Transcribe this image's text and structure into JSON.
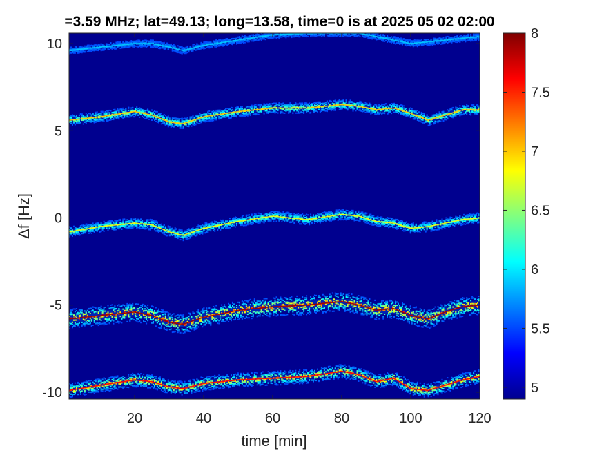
{
  "chart_data": {
    "type": "heatmap",
    "title": "=3.59 MHz;  lat=49.13; long=13.58, time=0 is at 2025 05 02 02:00",
    "xlabel": "time [min]",
    "ylabel": "Δf [Hz]",
    "xlim": [
      1,
      120
    ],
    "ylim": [
      -10.4,
      10.6
    ],
    "x_ticks": [
      20,
      40,
      60,
      80,
      100,
      120
    ],
    "x_tick_labels": [
      "20",
      "40",
      "60",
      "80",
      "100",
      "120"
    ],
    "y_ticks": [
      10,
      5,
      0,
      -5,
      -10
    ],
    "y_tick_labels": [
      "10",
      "5",
      "0",
      "-5",
      "-10"
    ],
    "colorbar": {
      "range": [
        4.9,
        8
      ],
      "ticks": [
        8,
        7.5,
        7,
        6.5,
        6,
        5.5,
        5
      ],
      "tick_labels": [
        "8",
        "7.5",
        "7",
        "6.5",
        "6",
        "5.5",
        "5"
      ],
      "colormap": "jet"
    },
    "grid": false,
    "background_color": "#00008f",
    "series": [
      {
        "x": [
          1,
          10,
          20,
          25,
          30,
          34,
          40,
          50,
          60,
          70,
          80,
          85,
          90,
          100,
          110,
          120
        ],
        "y": [
          9.6,
          9.8,
          10.0,
          10.0,
          9.8,
          9.6,
          9.9,
          10.2,
          10.5,
          10.6,
          10.6,
          10.6,
          10.4,
          10.0,
          10.2,
          10.4
        ],
        "peak": 5.9,
        "spread": 0.2
      },
      {
        "x": [
          1,
          10,
          20,
          25,
          30,
          34,
          40,
          50,
          60,
          70,
          80,
          85,
          90,
          95,
          100,
          105,
          110,
          115,
          120
        ],
        "y": [
          5.6,
          5.8,
          6.1,
          5.9,
          5.5,
          5.4,
          5.8,
          6.1,
          6.3,
          6.3,
          6.5,
          6.4,
          6.2,
          6.3,
          6.0,
          5.6,
          5.9,
          6.2,
          6.2
        ],
        "peak": 7.0,
        "spread": 0.3
      },
      {
        "x": [
          1,
          10,
          20,
          25,
          30,
          34,
          40,
          50,
          60,
          70,
          80,
          85,
          90,
          95,
          100,
          105,
          110,
          115,
          120
        ],
        "y": [
          -0.8,
          -0.5,
          -0.3,
          -0.4,
          -0.8,
          -1.0,
          -0.6,
          -0.2,
          0.1,
          -0.1,
          0.2,
          0.1,
          -0.2,
          -0.3,
          -0.6,
          -0.5,
          -0.3,
          -0.1,
          0.0
        ],
        "peak": 6.8,
        "spread": 0.3
      },
      {
        "x": [
          1,
          10,
          20,
          25,
          30,
          34,
          40,
          50,
          60,
          70,
          80,
          85,
          90,
          95,
          100,
          105,
          110,
          115,
          120
        ],
        "y": [
          -5.8,
          -5.6,
          -5.4,
          -5.6,
          -6.0,
          -6.1,
          -5.7,
          -5.3,
          -5.1,
          -5.0,
          -4.8,
          -5.0,
          -5.3,
          -5.2,
          -5.6,
          -5.8,
          -5.4,
          -5.1,
          -5.0
        ],
        "peak": 7.9,
        "spread": 0.55
      },
      {
        "x": [
          1,
          10,
          20,
          25,
          30,
          34,
          40,
          50,
          60,
          70,
          80,
          85,
          90,
          95,
          100,
          105,
          110,
          115,
          120
        ],
        "y": [
          -9.9,
          -9.6,
          -9.3,
          -9.4,
          -9.7,
          -9.8,
          -9.5,
          -9.3,
          -9.2,
          -9.1,
          -8.8,
          -9.0,
          -9.4,
          -9.2,
          -9.8,
          -9.9,
          -9.6,
          -9.3,
          -9.1
        ],
        "peak": 7.6,
        "spread": 0.4
      }
    ]
  }
}
